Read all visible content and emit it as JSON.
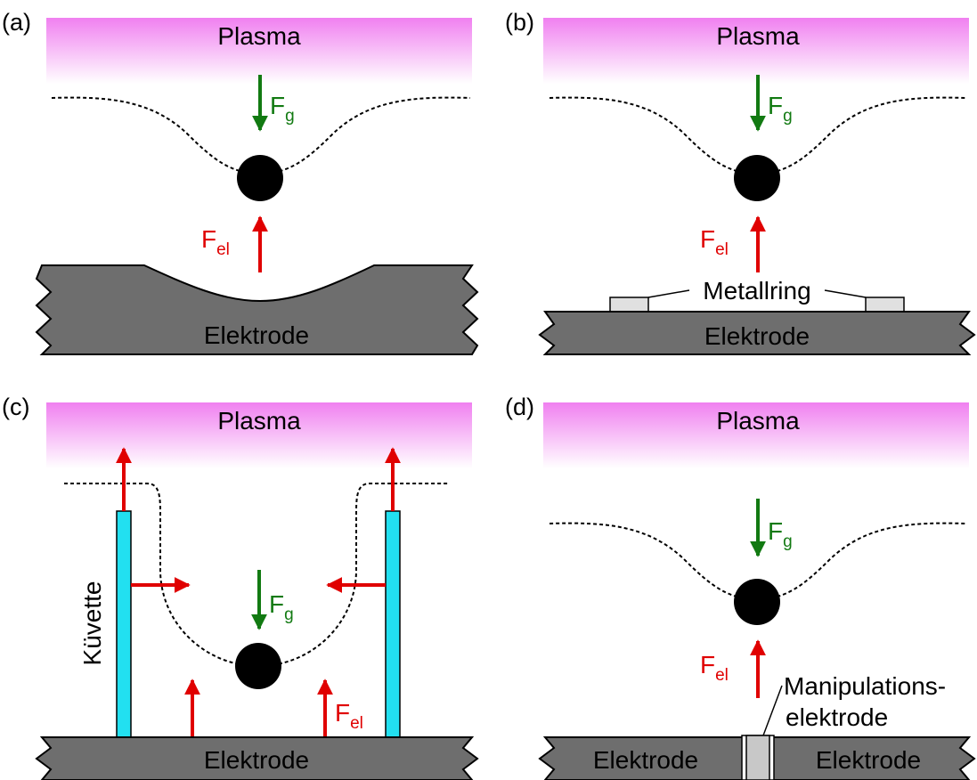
{
  "colors": {
    "plasma": "#f080f0",
    "gravity": "#127a12",
    "electric": "#e00000",
    "electrode": "#6e6e6e",
    "ring": "#e0e0e0",
    "cuvette": "#22e0f0",
    "manipulation_electrode": "#c8c8c8"
  },
  "panels": [
    {
      "id": "a",
      "tag": "(a)",
      "plasma_label": "Plasma",
      "electrode_label": "Elektrode",
      "fg_main": "F",
      "fg_sub": "g",
      "fel_main": "F",
      "fel_sub": "el"
    },
    {
      "id": "b",
      "tag": "(b)",
      "plasma_label": "Plasma",
      "electrode_label": "Elektrode",
      "ring_label": "Metallring",
      "fg_main": "F",
      "fg_sub": "g",
      "fel_main": "F",
      "fel_sub": "el"
    },
    {
      "id": "c",
      "tag": "(c)",
      "plasma_label": "Plasma",
      "electrode_label": "Elektrode",
      "cuvette_label": "Küvette",
      "fg_main": "F",
      "fg_sub": "g",
      "fel_main": "F",
      "fel_sub": "el"
    },
    {
      "id": "d",
      "tag": "(d)",
      "plasma_label": "Plasma",
      "electrode_label_left": "Elektrode",
      "electrode_label_right": "Elektrode",
      "manip_label_line1": "Manipulations-",
      "manip_label_line2": "elektrode",
      "fg_main": "F",
      "fg_sub": "g",
      "fel_main": "F",
      "fel_sub": "el"
    }
  ]
}
